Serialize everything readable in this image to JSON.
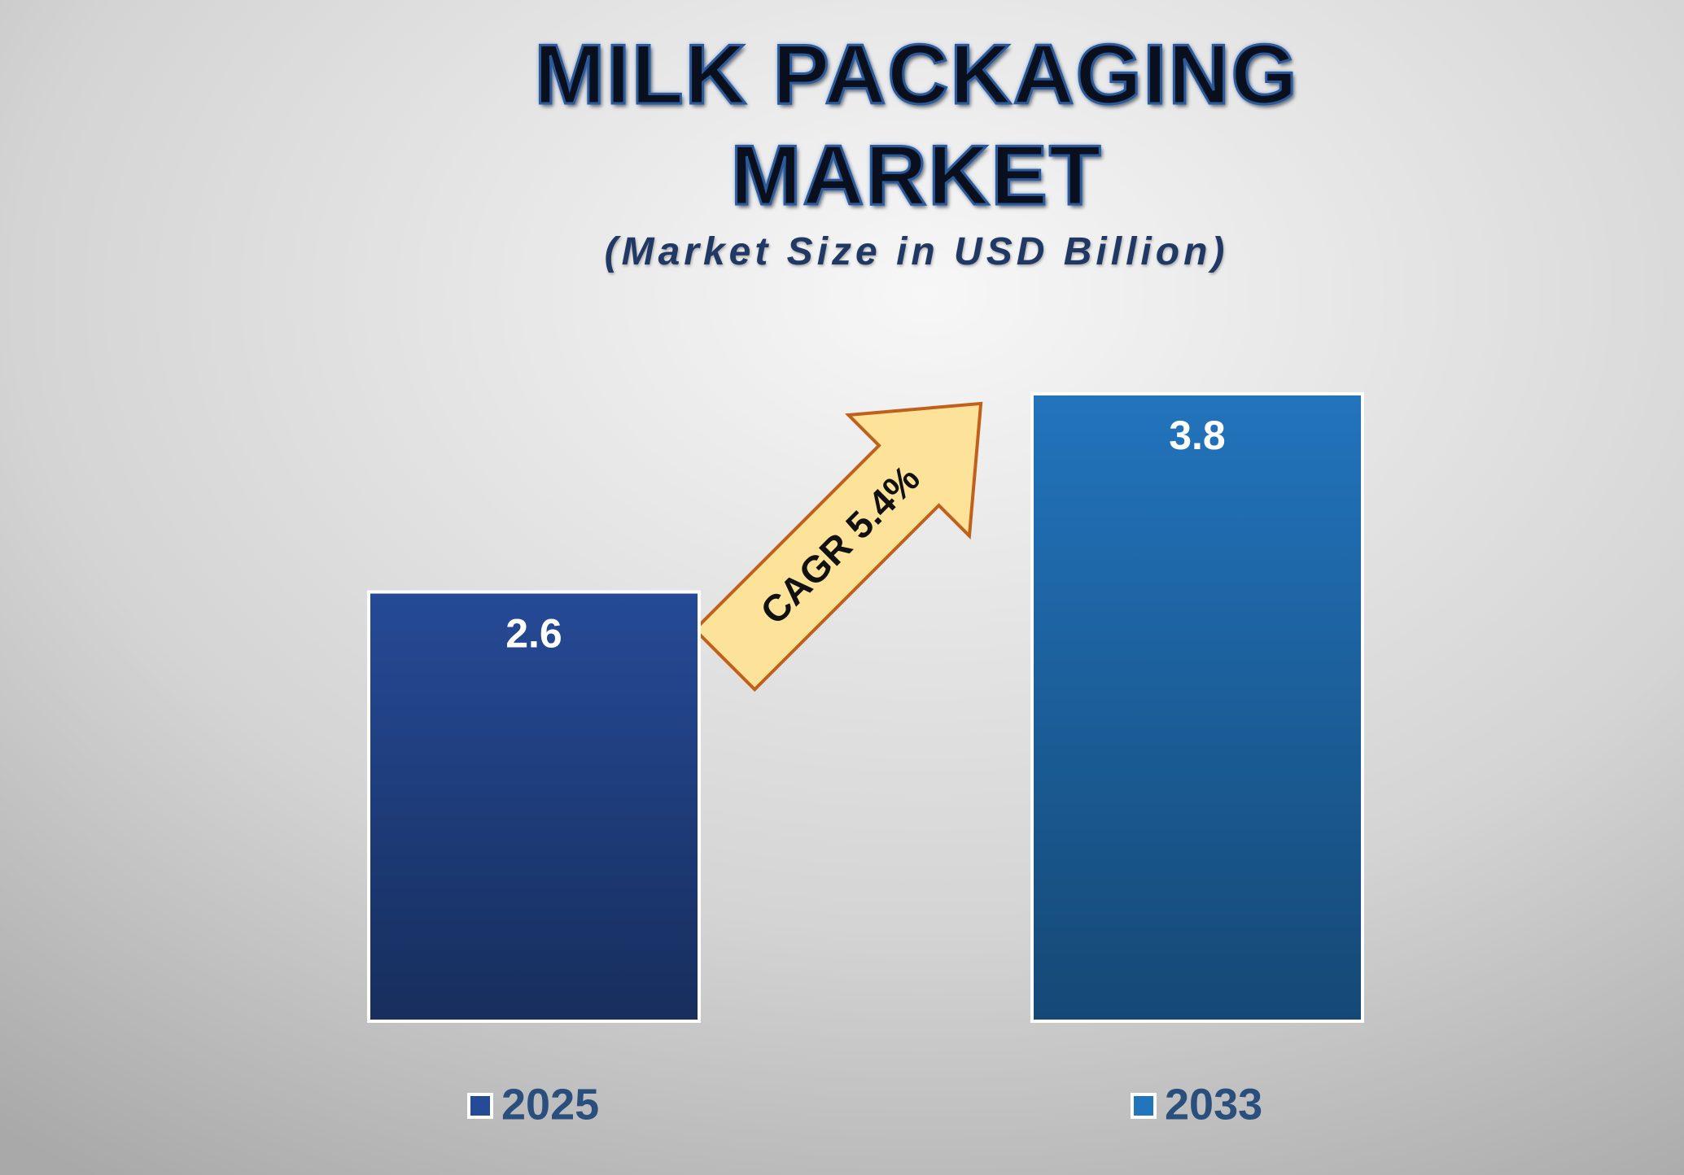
{
  "chart_data": {
    "type": "bar",
    "title": "MILK PACKAGING MARKET",
    "subtitle": "(Market Size in USD Billion)",
    "annotation": "CAGR 5.4%",
    "categories": [
      "2025",
      "2033"
    ],
    "values": [
      2.6,
      3.8
    ],
    "colors": [
      "#254a96",
      "#2274bd"
    ]
  }
}
